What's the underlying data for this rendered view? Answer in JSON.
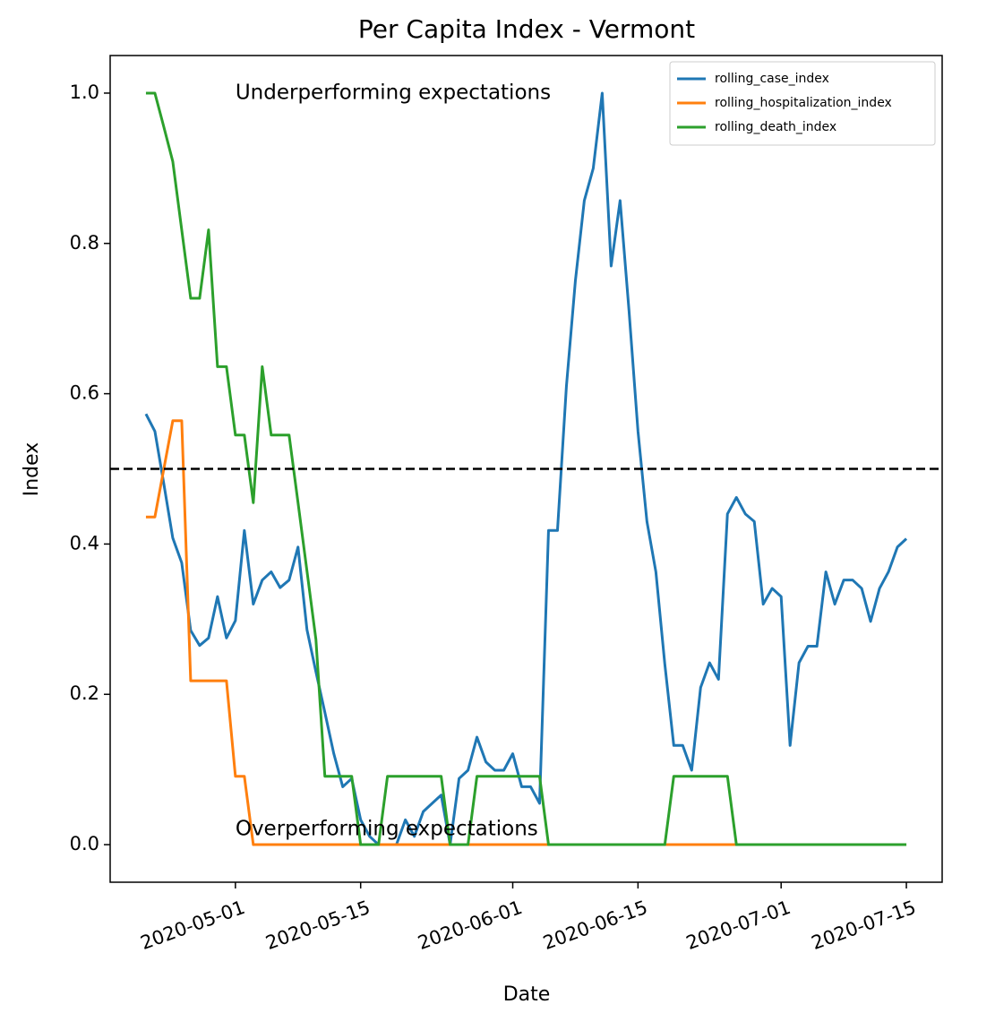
{
  "chart_data": {
    "type": "line",
    "title": "Per Capita Index - Vermont",
    "xlabel": "Date",
    "ylabel": "Index",
    "x": [
      "2020-04-21",
      "2020-04-22",
      "2020-04-23",
      "2020-04-24",
      "2020-04-25",
      "2020-04-26",
      "2020-04-27",
      "2020-04-28",
      "2020-04-29",
      "2020-04-30",
      "2020-05-01",
      "2020-05-02",
      "2020-05-03",
      "2020-05-04",
      "2020-05-05",
      "2020-05-06",
      "2020-05-07",
      "2020-05-08",
      "2020-05-09",
      "2020-05-10",
      "2020-05-11",
      "2020-05-12",
      "2020-05-13",
      "2020-05-14",
      "2020-05-15",
      "2020-05-16",
      "2020-05-17",
      "2020-05-18",
      "2020-05-19",
      "2020-05-20",
      "2020-05-21",
      "2020-05-22",
      "2020-05-23",
      "2020-05-24",
      "2020-05-25",
      "2020-05-26",
      "2020-05-27",
      "2020-05-28",
      "2020-05-29",
      "2020-05-30",
      "2020-05-31",
      "2020-06-01",
      "2020-06-02",
      "2020-06-03",
      "2020-06-04",
      "2020-06-05",
      "2020-06-06",
      "2020-06-07",
      "2020-06-08",
      "2020-06-09",
      "2020-06-10",
      "2020-06-11",
      "2020-06-12",
      "2020-06-13",
      "2020-06-14",
      "2020-06-15",
      "2020-06-16",
      "2020-06-17",
      "2020-06-18",
      "2020-06-19",
      "2020-06-20",
      "2020-06-21",
      "2020-06-22",
      "2020-06-23",
      "2020-06-24",
      "2020-06-25",
      "2020-06-26",
      "2020-06-27",
      "2020-06-28",
      "2020-06-29",
      "2020-06-30",
      "2020-07-01",
      "2020-07-02",
      "2020-07-03",
      "2020-07-04",
      "2020-07-05",
      "2020-07-06",
      "2020-07-07",
      "2020-07-08",
      "2020-07-09",
      "2020-07-10",
      "2020-07-11",
      "2020-07-12",
      "2020-07-13",
      "2020-07-14",
      "2020-07-15"
    ],
    "series": [
      {
        "name": "rolling_case_index",
        "color": "#1f77b4",
        "values": [
          0.573,
          0.55,
          0.48,
          0.408,
          0.375,
          0.285,
          0.265,
          0.275,
          0.33,
          0.275,
          0.298,
          0.418,
          0.32,
          0.352,
          0.363,
          0.342,
          0.352,
          0.396,
          0.286,
          0.23,
          0.176,
          0.121,
          0.077,
          0.088,
          0.033,
          0.011,
          0,
          0,
          0,
          0.033,
          0.011,
          0.044,
          0.055,
          0.066,
          0,
          0.088,
          0.099,
          0.143,
          0.11,
          0.099,
          0.099,
          0.121,
          0.077,
          0.077,
          0.055,
          0.418,
          0.418,
          0.61,
          0.75,
          0.857,
          0.9,
          1.0,
          0.77,
          0.857,
          0.71,
          0.55,
          0.43,
          0.363,
          0.24,
          0.132,
          0.132,
          0.099,
          0.209,
          0.242,
          0.22,
          0.44,
          0.462,
          0.44,
          0.43,
          0.32,
          0.341,
          0.33,
          0.132,
          0.242,
          0.264,
          0.264,
          0.363,
          0.32,
          0.352,
          0.352,
          0.341,
          0.297,
          0.341,
          0.363,
          0.396,
          0.407
        ]
      },
      {
        "name": "rolling_hospitalization_index",
        "color": "#ff7f0e",
        "values": [
          0.436,
          0.436,
          0.5,
          0.564,
          0.564,
          0.218,
          0.218,
          0.218,
          0.218,
          0.218,
          0.091,
          0.091,
          0,
          0,
          0,
          0,
          0,
          0,
          0,
          0,
          0,
          0,
          0,
          0,
          0,
          0,
          0,
          0,
          0,
          0,
          0,
          0,
          0,
          0,
          0,
          0,
          0,
          0,
          0,
          0,
          0,
          0,
          0,
          0,
          0,
          0,
          0,
          0,
          0,
          0,
          0,
          0,
          0,
          0,
          0,
          0,
          0,
          0,
          0,
          0,
          0,
          0,
          0,
          0,
          0,
          0,
          0,
          0,
          0,
          0,
          0,
          0,
          0,
          0,
          0,
          0,
          0,
          0,
          0,
          0,
          0,
          0,
          0,
          0,
          0,
          0
        ]
      },
      {
        "name": "rolling_death_index",
        "color": "#2ca02c",
        "values": [
          1.0,
          1.0,
          0.955,
          0.909,
          0.818,
          0.727,
          0.727,
          0.818,
          0.636,
          0.636,
          0.545,
          0.545,
          0.455,
          0.636,
          0.545,
          0.545,
          0.545,
          0.455,
          0.364,
          0.273,
          0.091,
          0.091,
          0.091,
          0.091,
          0,
          0,
          0,
          0.091,
          0.091,
          0.091,
          0.091,
          0.091,
          0.091,
          0.091,
          0,
          0,
          0,
          0.091,
          0.091,
          0.091,
          0.091,
          0.091,
          0.091,
          0.091,
          0.091,
          0,
          0,
          0,
          0,
          0,
          0,
          0,
          0,
          0,
          0,
          0,
          0,
          0,
          0,
          0.091,
          0.091,
          0.091,
          0.091,
          0.091,
          0.091,
          0.091,
          0,
          0,
          0,
          0,
          0,
          0,
          0,
          0,
          0,
          0,
          0,
          0,
          0,
          0,
          0,
          0,
          0,
          0,
          0,
          0
        ]
      }
    ],
    "reference_line": 0.5,
    "annotations": [
      "Underperforming expectations",
      "Overperforming expectations"
    ],
    "xlim": [
      "2020-04-17",
      "2020-07-19"
    ],
    "ylim": [
      -0.05,
      1.05
    ],
    "xticks": [
      "2020-05-01",
      "2020-05-15",
      "2020-06-01",
      "2020-06-15",
      "2020-07-01",
      "2020-07-15"
    ],
    "yticks": [
      {
        "value": 0,
        "label": "0.0"
      },
      0.2,
      0.4,
      0.6,
      0.8,
      {
        "value": 1,
        "label": "1.0"
      }
    ],
    "legend": "upper right"
  }
}
